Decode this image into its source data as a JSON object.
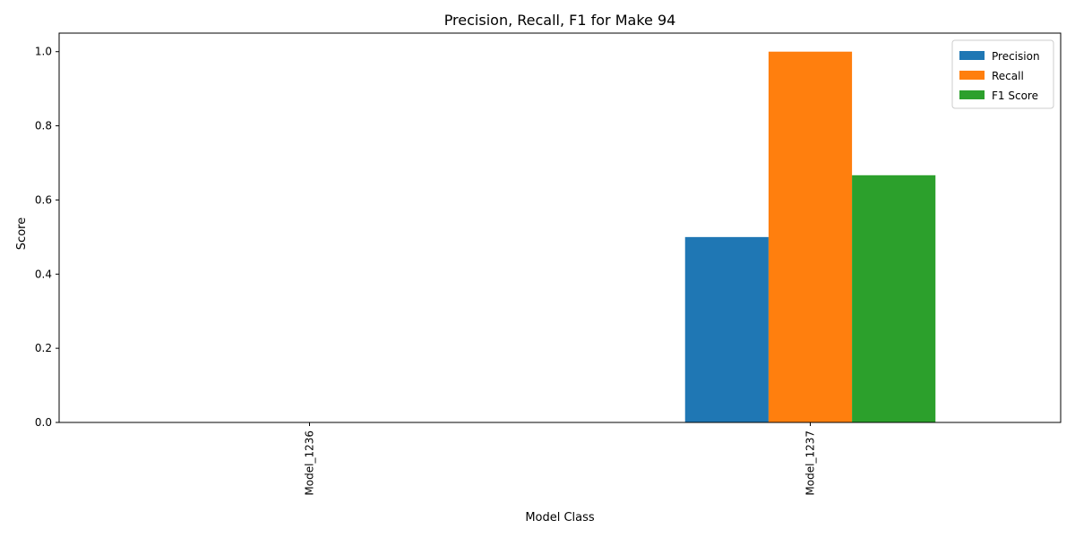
{
  "chart_data": {
    "type": "bar",
    "title": "Precision, Recall, F1 for Make 94",
    "xlabel": "Model Class",
    "ylabel": "Score",
    "categories": [
      "Model_1236",
      "Model_1237"
    ],
    "series": [
      {
        "name": "Precision",
        "color": "#1f77b4",
        "values": [
          0.0,
          0.5
        ]
      },
      {
        "name": "Recall",
        "color": "#ff7f0e",
        "values": [
          0.0,
          1.0
        ]
      },
      {
        "name": "F1 Score",
        "color": "#2ca02c",
        "values": [
          0.0,
          0.6667
        ]
      }
    ],
    "ylim": [
      0,
      1.05
    ],
    "yticks": [
      0.0,
      0.2,
      0.4,
      0.6,
      0.8,
      1.0
    ],
    "ytick_labels": [
      "0.0",
      "0.2",
      "0.4",
      "0.6",
      "0.8",
      "1.0"
    ],
    "grid": false,
    "legend_position": "top-right"
  }
}
